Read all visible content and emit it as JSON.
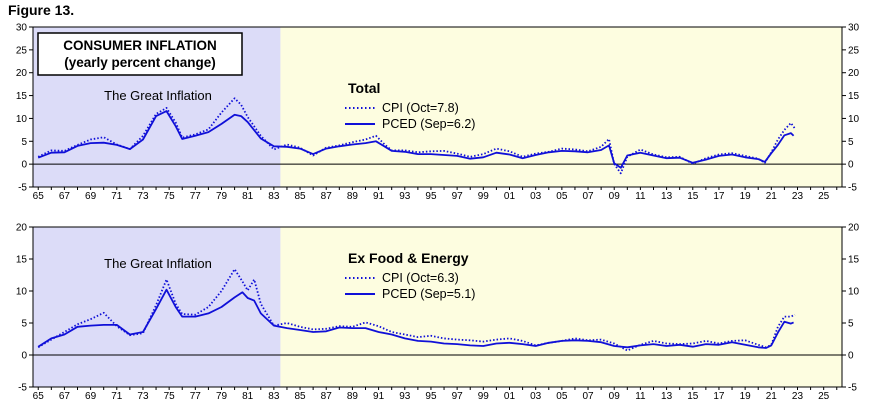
{
  "figure_label": "Figure 13.",
  "colors": {
    "great_inflation_shade": "#dcdcf8",
    "plot_background": "#fdfde0",
    "line": "#1010d8",
    "zero_line": "#000000"
  },
  "chart_data": [
    {
      "type": "line",
      "box_title": [
        "CONSUMER INFLATION",
        "(yearly percent change)"
      ],
      "panel_title": "Total",
      "shade_label": "The Great Inflation",
      "shade_range": [
        1965.0,
        1983.5
      ],
      "xlim": [
        1964.6,
        2026.4
      ],
      "ylim": [
        -5,
        30
      ],
      "yticks": [
        -5,
        0,
        5,
        10,
        15,
        20,
        25,
        30
      ],
      "xtick_labels": [
        "65",
        "67",
        "69",
        "71",
        "73",
        "75",
        "77",
        "79",
        "81",
        "83",
        "85",
        "87",
        "89",
        "91",
        "93",
        "95",
        "97",
        "99",
        "01",
        "03",
        "05",
        "07",
        "09",
        "11",
        "13",
        "15",
        "17",
        "19",
        "21",
        "23",
        "25"
      ],
      "xtick_years": [
        1965,
        1967,
        1969,
        1971,
        1973,
        1975,
        1977,
        1979,
        1981,
        1983,
        1985,
        1987,
        1989,
        1991,
        1993,
        1995,
        1997,
        1999,
        2001,
        2003,
        2005,
        2007,
        2009,
        2011,
        2013,
        2015,
        2017,
        2019,
        2021,
        2023,
        2025
      ],
      "legend_location": "upper-center",
      "series": [
        {
          "name": "CPI (Oct=7.8)",
          "style": "dotted",
          "x": [
            1965,
            1966,
            1967,
            1968,
            1969,
            1970,
            1971,
            1972,
            1973,
            1974,
            1974.8,
            1975.5,
            1976,
            1977,
            1978,
            1979,
            1980,
            1980.5,
            1981,
            1982,
            1983,
            1984,
            1985,
            1986,
            1987,
            1988,
            1989,
            1990,
            1990.8,
            1991.5,
            1992,
            1993,
            1994,
            1995,
            1996,
            1997,
            1998,
            1999,
            2000,
            2001,
            2002,
            2003,
            2004,
            2005,
            2006,
            2007,
            2008,
            2008.6,
            2009,
            2009.5,
            2010,
            2011,
            2012,
            2013,
            2014,
            2015,
            2016,
            2017,
            2018,
            2019,
            2020,
            2020.5,
            2021,
            2021.5,
            2022,
            2022.5,
            2022.8
          ],
          "y": [
            1.6,
            3.0,
            2.9,
            4.2,
            5.4,
            5.9,
            4.3,
            3.3,
            6.2,
            11.0,
            12.3,
            9.1,
            5.8,
            6.5,
            7.6,
            11.3,
            14.4,
            13.0,
            10.3,
            6.2,
            3.2,
            4.3,
            3.6,
            1.9,
            3.6,
            4.1,
            4.8,
            5.4,
            6.2,
            4.2,
            3.0,
            3.0,
            2.6,
            2.8,
            2.9,
            2.3,
            1.6,
            2.2,
            3.4,
            2.8,
            1.6,
            2.3,
            2.7,
            3.4,
            3.2,
            2.8,
            3.8,
            5.5,
            0.0,
            -2.0,
            1.6,
            3.2,
            2.1,
            1.5,
            1.6,
            0.1,
            1.3,
            2.1,
            2.4,
            1.8,
            1.2,
            0.3,
            2.6,
            5.4,
            7.5,
            9.0,
            7.8
          ]
        },
        {
          "name": "PCED (Sep=6.2)",
          "style": "solid",
          "x": [
            1965,
            1966,
            1967,
            1968,
            1969,
            1970,
            1971,
            1972,
            1973,
            1974,
            1974.8,
            1975.5,
            1976,
            1977,
            1978,
            1979,
            1980,
            1980.5,
            1981,
            1982,
            1983,
            1984,
            1985,
            1986,
            1987,
            1988,
            1989,
            1990,
            1990.8,
            1991.5,
            1992,
            1993,
            1994,
            1995,
            1996,
            1997,
            1998,
            1999,
            2000,
            2001,
            2002,
            2003,
            2004,
            2005,
            2006,
            2007,
            2008,
            2008.6,
            2009,
            2009.5,
            2010,
            2011,
            2012,
            2013,
            2014,
            2015,
            2016,
            2017,
            2018,
            2019,
            2020,
            2020.5,
            2021,
            2021.5,
            2022,
            2022.5,
            2022.7
          ],
          "y": [
            1.4,
            2.5,
            2.6,
            4.0,
            4.6,
            4.7,
            4.2,
            3.3,
            5.4,
            10.5,
            11.6,
            8.3,
            5.5,
            6.2,
            7.0,
            8.8,
            10.8,
            10.5,
            9.2,
            5.6,
            3.9,
            3.8,
            3.4,
            2.2,
            3.4,
            3.9,
            4.3,
            4.6,
            5.0,
            3.8,
            2.9,
            2.7,
            2.2,
            2.2,
            2.0,
            1.8,
            1.2,
            1.5,
            2.5,
            2.1,
            1.3,
            2.0,
            2.6,
            2.9,
            2.8,
            2.6,
            3.1,
            4.1,
            0.2,
            -0.8,
            1.9,
            2.5,
            1.9,
            1.3,
            1.4,
            0.3,
            1.0,
            1.8,
            2.1,
            1.5,
            1.1,
            0.5,
            2.4,
            4.2,
            6.3,
            6.8,
            6.2
          ]
        }
      ]
    },
    {
      "type": "line",
      "panel_title": "Ex Food & Energy",
      "shade_label": "The Great Inflation",
      "shade_range": [
        1965.0,
        1983.5
      ],
      "xlim": [
        1964.6,
        2026.4
      ],
      "ylim": [
        -5,
        20
      ],
      "yticks": [
        -5,
        0,
        5,
        10,
        15,
        20
      ],
      "xtick_labels": [
        "65",
        "67",
        "69",
        "71",
        "73",
        "75",
        "77",
        "79",
        "81",
        "83",
        "85",
        "87",
        "89",
        "91",
        "93",
        "95",
        "97",
        "99",
        "01",
        "03",
        "05",
        "07",
        "09",
        "11",
        "13",
        "15",
        "17",
        "19",
        "21",
        "23",
        "25"
      ],
      "xtick_years": [
        1965,
        1967,
        1969,
        1971,
        1973,
        1975,
        1977,
        1979,
        1981,
        1983,
        1985,
        1987,
        1989,
        1991,
        1993,
        1995,
        1997,
        1999,
        2001,
        2003,
        2005,
        2007,
        2009,
        2011,
        2013,
        2015,
        2017,
        2019,
        2021,
        2023,
        2025
      ],
      "legend_location": "upper-center",
      "series": [
        {
          "name": "CPI (Oct=6.3)",
          "style": "dotted",
          "x": [
            1965,
            1966,
            1967,
            1968,
            1969,
            1970,
            1971,
            1972,
            1973,
            1974,
            1974.8,
            1975.5,
            1976,
            1977,
            1978,
            1979,
            1980,
            1980.6,
            1981,
            1981.5,
            1982,
            1983,
            1984,
            1985,
            1986,
            1987,
            1988,
            1989,
            1990,
            1991,
            1992,
            1993,
            1994,
            1995,
            1996,
            1997,
            1998,
            1999,
            2000,
            2001,
            2002,
            2003,
            2004,
            2005,
            2006,
            2007,
            2008,
            2009,
            2010,
            2011,
            2012,
            2013,
            2014,
            2015,
            2016,
            2017,
            2018,
            2019,
            2020,
            2020.6,
            2021,
            2021.5,
            2022,
            2022.5,
            2022.8
          ],
          "y": [
            1.2,
            2.4,
            3.6,
            4.8,
            5.6,
            6.6,
            4.5,
            3.1,
            3.4,
            7.8,
            11.8,
            8.0,
            6.4,
            6.3,
            7.5,
            10.0,
            13.4,
            11.5,
            10.1,
            11.8,
            8.0,
            4.6,
            5.0,
            4.4,
            4.0,
            4.1,
            4.5,
            4.4,
            5.1,
            4.5,
            3.6,
            3.2,
            2.8,
            3.0,
            2.6,
            2.4,
            2.3,
            2.1,
            2.4,
            2.6,
            2.2,
            1.5,
            1.9,
            2.2,
            2.6,
            2.3,
            2.4,
            1.8,
            0.7,
            1.6,
            2.2,
            1.8,
            1.7,
            1.8,
            2.2,
            1.8,
            2.2,
            2.3,
            1.6,
            1.2,
            1.6,
            4.4,
            6.0,
            6.0,
            6.3
          ]
        },
        {
          "name": "PCED (Sep=5.1)",
          "style": "solid",
          "x": [
            1965,
            1966,
            1967,
            1968,
            1969,
            1970,
            1971,
            1972,
            1973,
            1974,
            1974.8,
            1975.5,
            1976,
            1977,
            1978,
            1979,
            1980,
            1980.6,
            1981,
            1981.5,
            1982,
            1983,
            1984,
            1985,
            1986,
            1987,
            1988,
            1989,
            1990,
            1991,
            1992,
            1993,
            1994,
            1995,
            1996,
            1997,
            1998,
            1999,
            2000,
            2001,
            2002,
            2003,
            2004,
            2005,
            2006,
            2007,
            2008,
            2009,
            2010,
            2011,
            2012,
            2013,
            2014,
            2015,
            2016,
            2017,
            2018,
            2019,
            2020,
            2020.6,
            2021,
            2021.5,
            2022,
            2022.5,
            2022.7
          ],
          "y": [
            1.3,
            2.6,
            3.2,
            4.4,
            4.6,
            4.7,
            4.7,
            3.2,
            3.6,
            7.2,
            10.2,
            7.5,
            6.0,
            6.0,
            6.5,
            7.5,
            9.0,
            9.8,
            8.9,
            8.5,
            6.5,
            4.6,
            4.2,
            3.9,
            3.6,
            3.7,
            4.3,
            4.2,
            4.2,
            3.6,
            3.2,
            2.6,
            2.2,
            2.1,
            1.8,
            1.7,
            1.5,
            1.4,
            1.8,
            1.9,
            1.7,
            1.4,
            1.9,
            2.2,
            2.3,
            2.2,
            2.0,
            1.4,
            1.2,
            1.5,
            1.7,
            1.4,
            1.6,
            1.3,
            1.7,
            1.6,
            2.0,
            1.6,
            1.2,
            1.1,
            1.5,
            3.5,
            5.2,
            4.9,
            5.1
          ]
        }
      ]
    }
  ]
}
